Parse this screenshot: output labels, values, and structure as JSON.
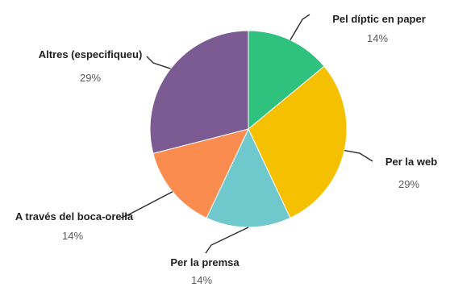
{
  "chart_data": {
    "type": "pie",
    "start_angle_deg": 0,
    "direction": "clockwise",
    "slices": [
      {
        "label": "Pel díptic en paper",
        "value": 14,
        "value_label": "14%",
        "color": "#2ec27e"
      },
      {
        "label": "Per la web",
        "value": 29,
        "value_label": "29%",
        "color": "#f5c000"
      },
      {
        "label": "Per la premsa",
        "value": 14,
        "value_label": "14%",
        "color": "#6fc8cc"
      },
      {
        "label": "A través del boca-orella",
        "value": 14,
        "value_label": "14%",
        "color": "#fb8c4f"
      },
      {
        "label": "Altres (especifiqueu)",
        "value": 29,
        "value_label": "29%",
        "color": "#7c5a92"
      }
    ]
  }
}
